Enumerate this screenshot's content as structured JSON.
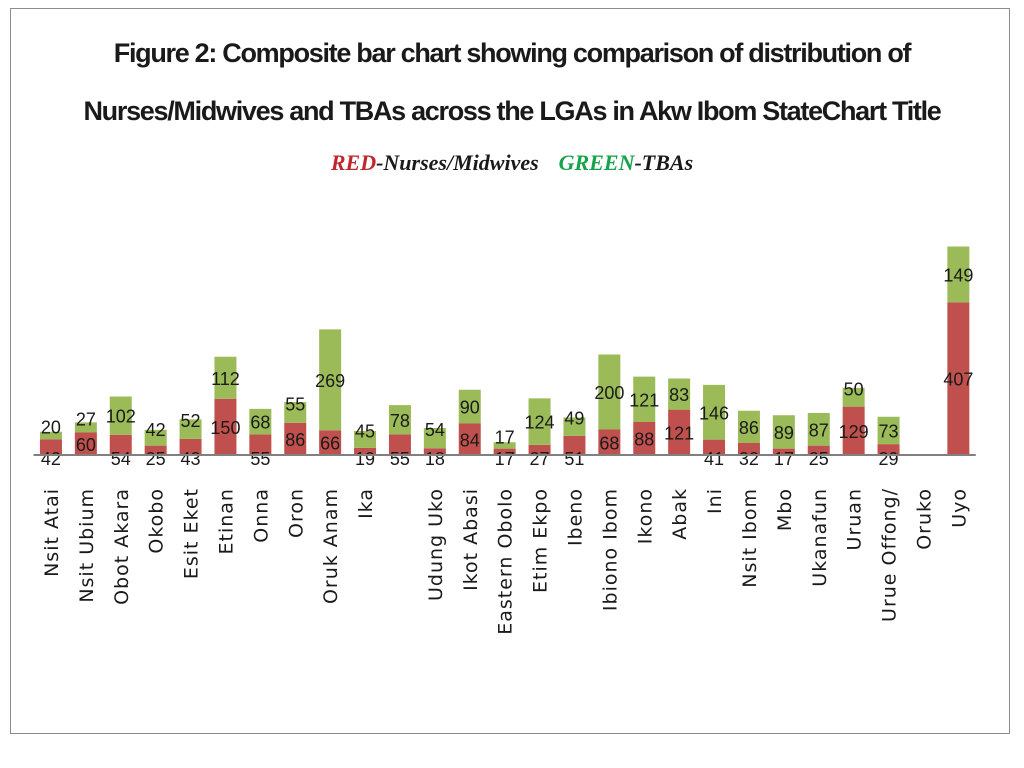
{
  "chart_data": {
    "type": "bar",
    "stacked": true,
    "title_line1": "Figure 2: Composite bar chart showing comparison of distribution of",
    "title_line2": "Nurses/Midwives and TBAs across the LGAs in Akw Ibom StateChart Title",
    "legend": {
      "nurses_key": "RED",
      "nurses_label": "-Nurses/Midwives",
      "tba_key": "GREEN",
      "tba_label": "-TBAs"
    },
    "colors": {
      "nurses": "#c0504d",
      "tbas": "#9bbb59",
      "axis": "#808080"
    },
    "categories": [
      "Nsit Atai",
      "Nsit Ubium",
      "Obot Akara",
      "Okobo",
      "Esit Eket",
      "Etinan",
      "Onna",
      "Oron",
      "Oruk Anam",
      "Ika",
      "",
      "Udung Uko",
      "Ikot Abasi",
      "Eastern Obolo",
      "Etim Ekpo",
      "Ibeno",
      "Ibiono Ibom",
      "Ikono",
      "Abak",
      "Ini",
      "Nsit Ibom",
      "Mbo",
      "Ukanafun",
      "Uruan",
      "Urue Offong/",
      "Oruko",
      "Uyo"
    ],
    "series": [
      {
        "name": "Nurses/Midwives",
        "values": [
          42,
          60,
          54,
          25,
          43,
          150,
          55,
          86,
          66,
          19,
          55,
          18,
          84,
          17,
          27,
          51,
          68,
          88,
          121,
          41,
          32,
          17,
          25,
          129,
          29,
          null,
          407
        ]
      },
      {
        "name": "TBAs",
        "values": [
          20,
          27,
          102,
          42,
          52,
          112,
          68,
          55,
          269,
          45,
          78,
          54,
          90,
          17,
          124,
          49,
          200,
          121,
          83,
          146,
          86,
          89,
          87,
          50,
          73,
          null,
          149
        ]
      }
    ],
    "ylim": [
      0,
      560
    ],
    "grid": false,
    "xlabel": "",
    "ylabel": ""
  }
}
